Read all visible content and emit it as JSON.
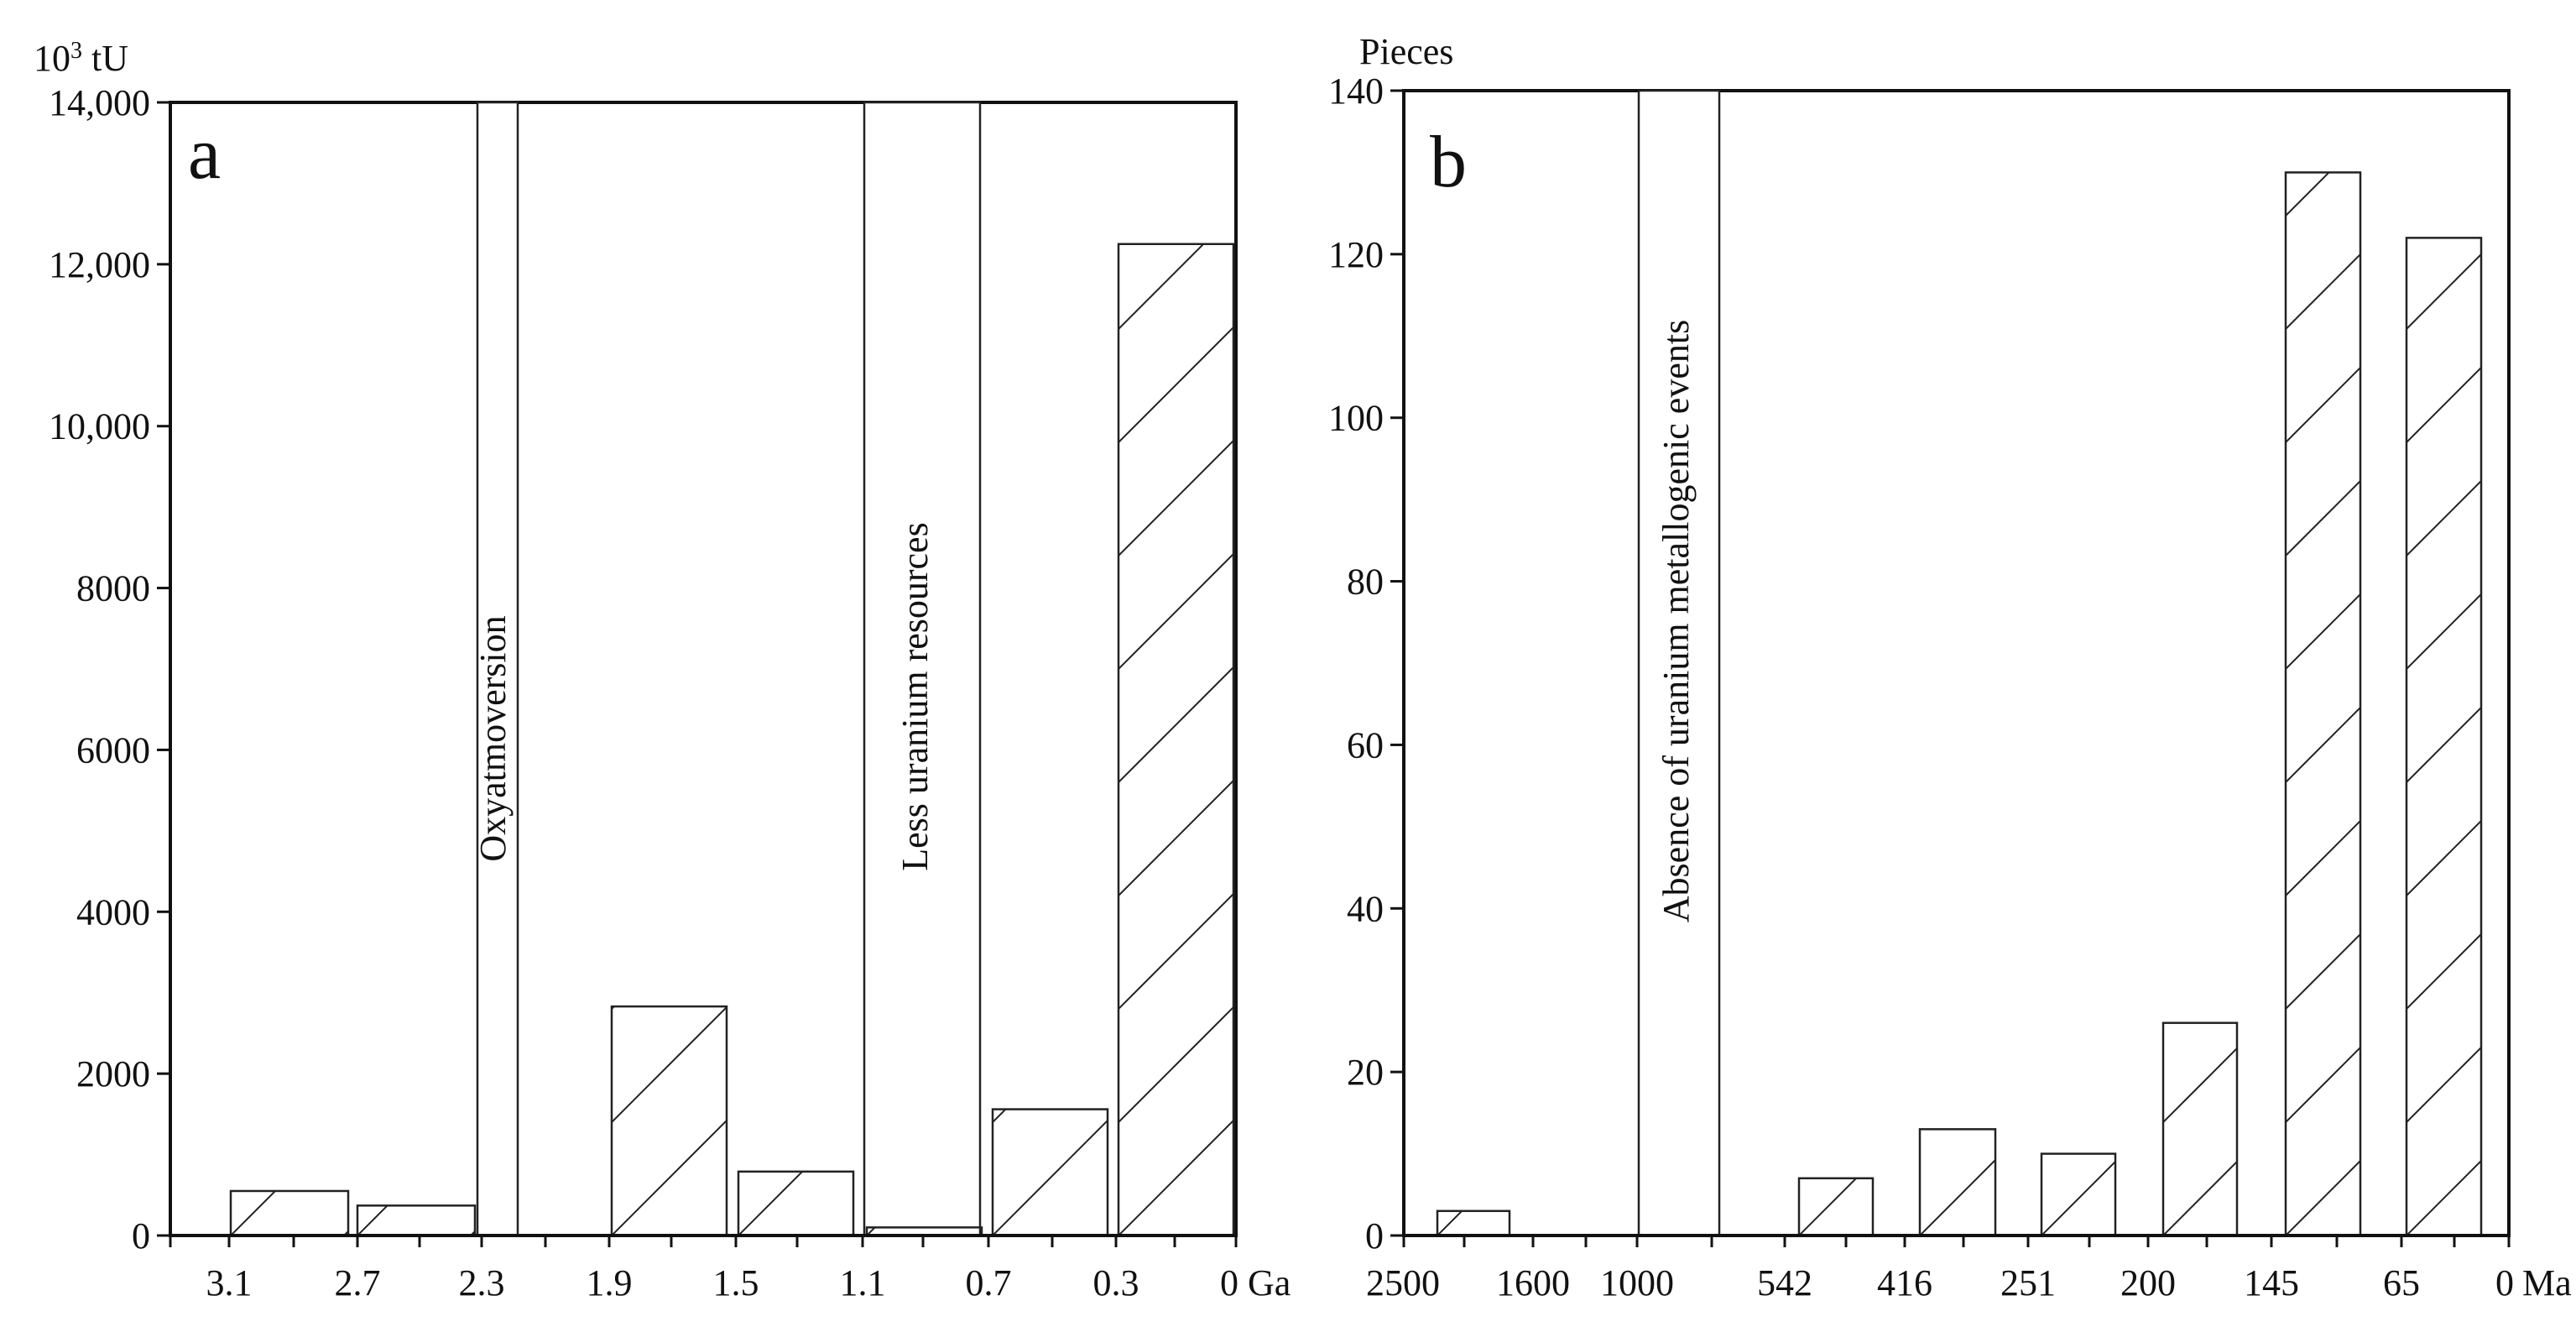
{
  "chart_data": [
    {
      "type": "bar",
      "panel_letter": "a",
      "ylabel_main": "10",
      "ylabel_exp": "3",
      "ylabel_unit": " tU",
      "ylim": [
        0,
        14000
      ],
      "yticks": [
        0,
        2000,
        4000,
        6000,
        8000,
        10000,
        12000,
        14000
      ],
      "ytick_labels": [
        "0",
        "2000",
        "4000",
        "6000",
        "8000",
        "10,000",
        "12,000",
        "14,000"
      ],
      "xticks": [
        "3.1",
        "2.7",
        "2.3",
        "1.9",
        "1.5",
        "1.1",
        "0.7",
        "0.3",
        "0"
      ],
      "x_unit": "Ga",
      "bars": [
        {
          "from": "3.1",
          "to": "2.7",
          "value": 550
        },
        {
          "from": "2.7",
          "to": "2.3",
          "value": 370
        },
        {
          "from": "1.9",
          "to": "1.5",
          "value": 2830
        },
        {
          "from": "1.5",
          "to": "1.1",
          "value": 790
        },
        {
          "from": "1.1",
          "to": "0.7",
          "value": 100
        },
        {
          "from": "0.7",
          "to": "0.3",
          "value": 1560
        },
        {
          "from": "0.3",
          "to": "0",
          "value": 12250
        }
      ],
      "bands": [
        {
          "label": "Oxyatmoversion",
          "near": "2.3"
        },
        {
          "label": "Less uranium resources",
          "from": "1.1",
          "to": "0.7"
        }
      ]
    },
    {
      "type": "bar",
      "panel_letter": "b",
      "ylabel": "Pieces",
      "ylim": [
        0,
        140
      ],
      "yticks": [
        0,
        20,
        40,
        60,
        80,
        100,
        120,
        140
      ],
      "ytick_labels": [
        "0",
        "20",
        "40",
        "60",
        "80",
        "100",
        "120",
        "140"
      ],
      "xticks": [
        "2500",
        "1600",
        "1000",
        "542",
        "416",
        "251",
        "200",
        "145",
        "65",
        "0"
      ],
      "x_unit": "Ma",
      "bars": [
        {
          "from": "2500",
          "to": "1600",
          "value": 3
        },
        {
          "from": "542",
          "to": "416",
          "value": 7
        },
        {
          "from": "416",
          "to": "251",
          "value": 13
        },
        {
          "from": "251",
          "to": "200",
          "value": 10
        },
        {
          "from": "200",
          "to": "145",
          "value": 26
        },
        {
          "from": "145",
          "to": "65",
          "value": 130
        },
        {
          "from": "65",
          "to": "0",
          "value": 122
        }
      ],
      "bands": [
        {
          "label": "Absence of uranium metallogenic events",
          "near": "1000"
        }
      ]
    }
  ]
}
